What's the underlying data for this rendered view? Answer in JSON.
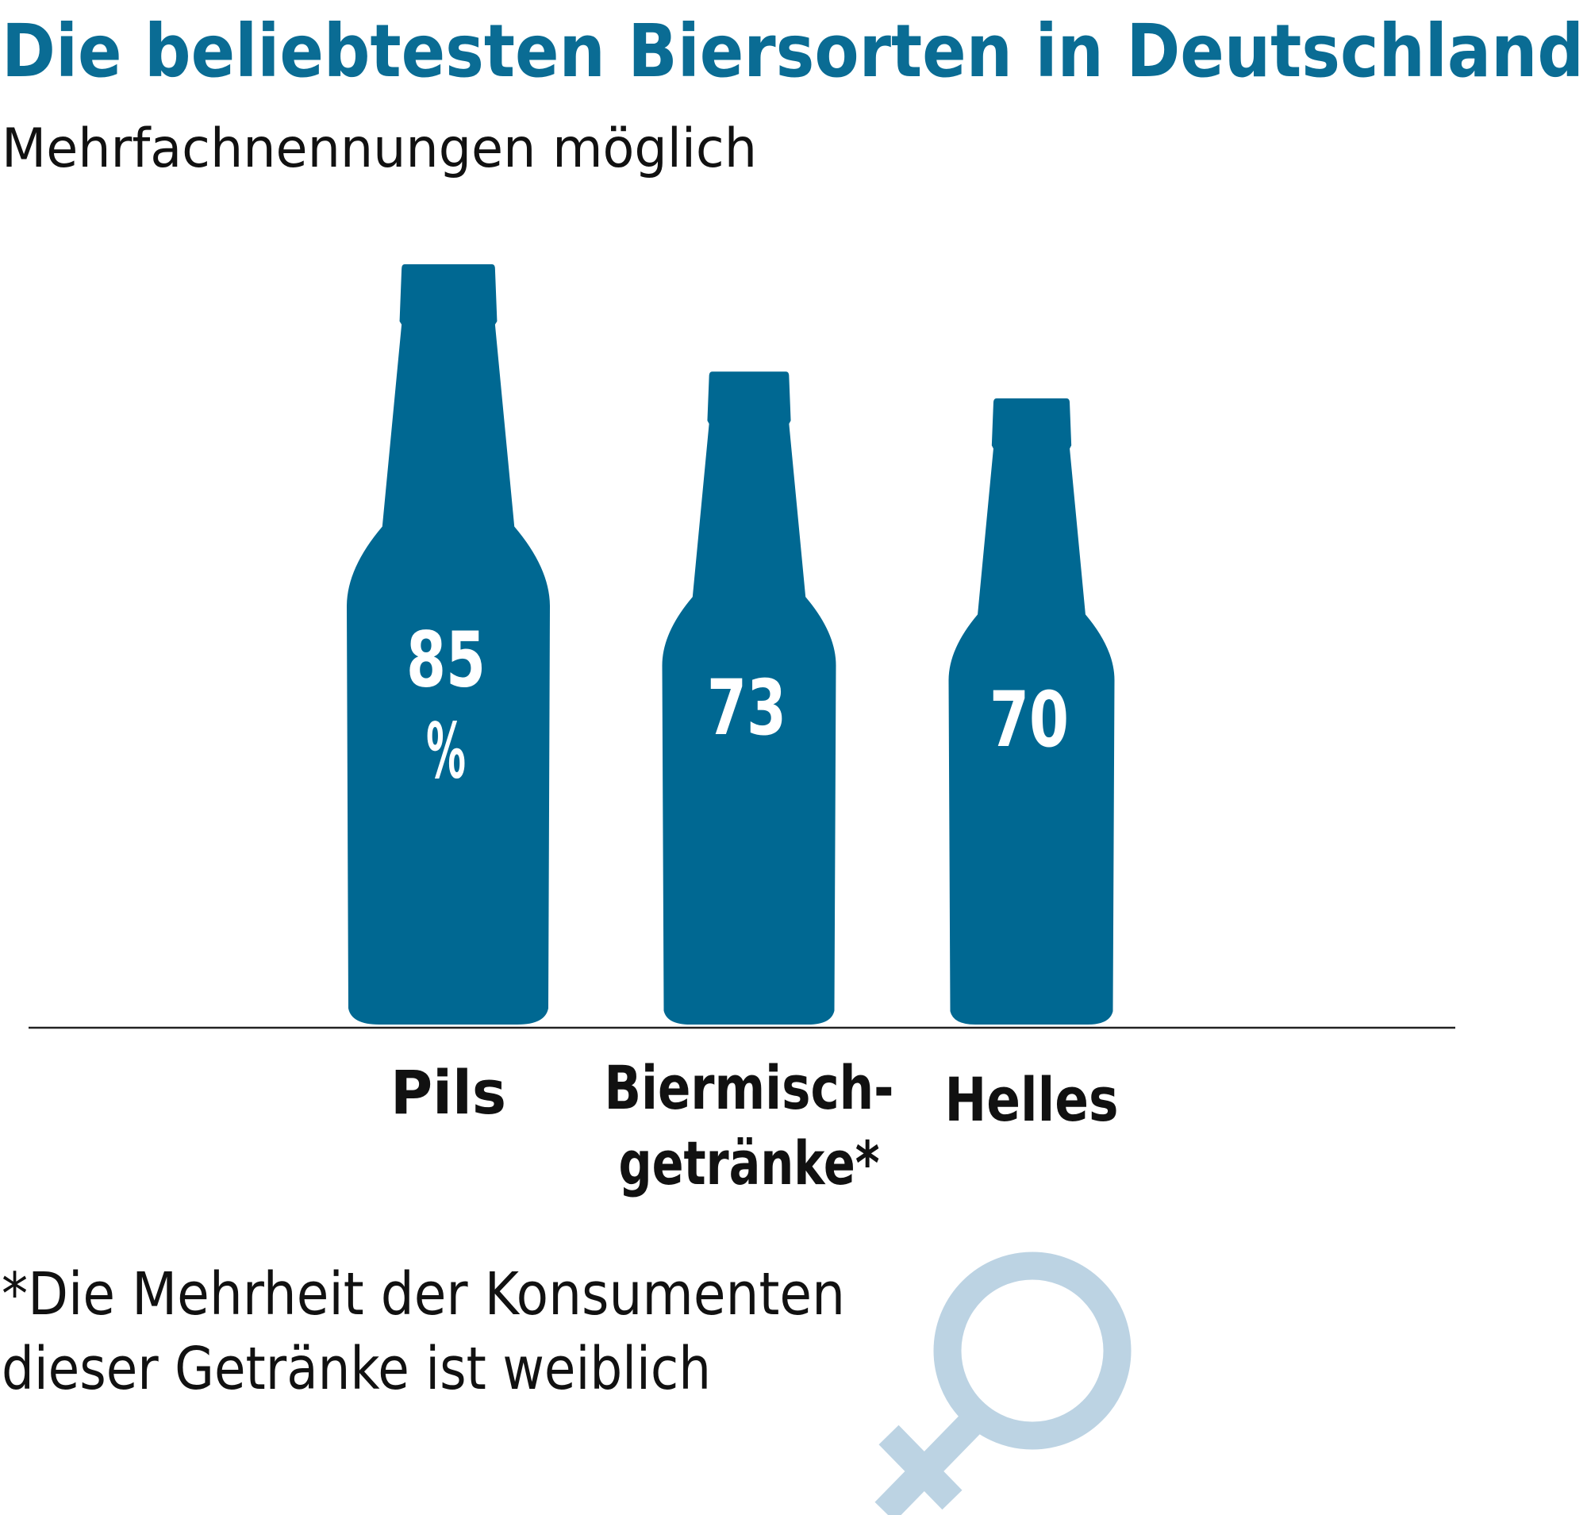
{
  "title": "Die beliebtesten Biersorten in Deutschland",
  "subtitle": "Mehrfachnennungen möglich",
  "footnote": {
    "lines": [
      "*Die Mehrheit der Konsumenten",
      "dieser Getränke ist weiblich"
    ]
  },
  "icon": "female-symbol-icon",
  "colors": {
    "title": "#0A6C94",
    "bottle": "#006892",
    "symbol": "#BCD3E3",
    "text": "#111111"
  },
  "chart_data": {
    "type": "bar",
    "mark": "bottle",
    "title": "Die beliebtesten Biersorten in Deutschland",
    "subtitle": "Mehrfachnennungen möglich",
    "unit": "%",
    "categories": [
      {
        "lines": [
          "Pils"
        ]
      },
      {
        "lines": [
          "Biermisch-",
          "getränke*"
        ]
      },
      {
        "lines": [
          "Helles"
        ]
      }
    ],
    "values": [
      85,
      73,
      70
    ],
    "value_labels": [
      [
        "85",
        "%"
      ],
      [
        "73"
      ],
      [
        "70"
      ]
    ],
    "grid": false,
    "legend": "none"
  }
}
